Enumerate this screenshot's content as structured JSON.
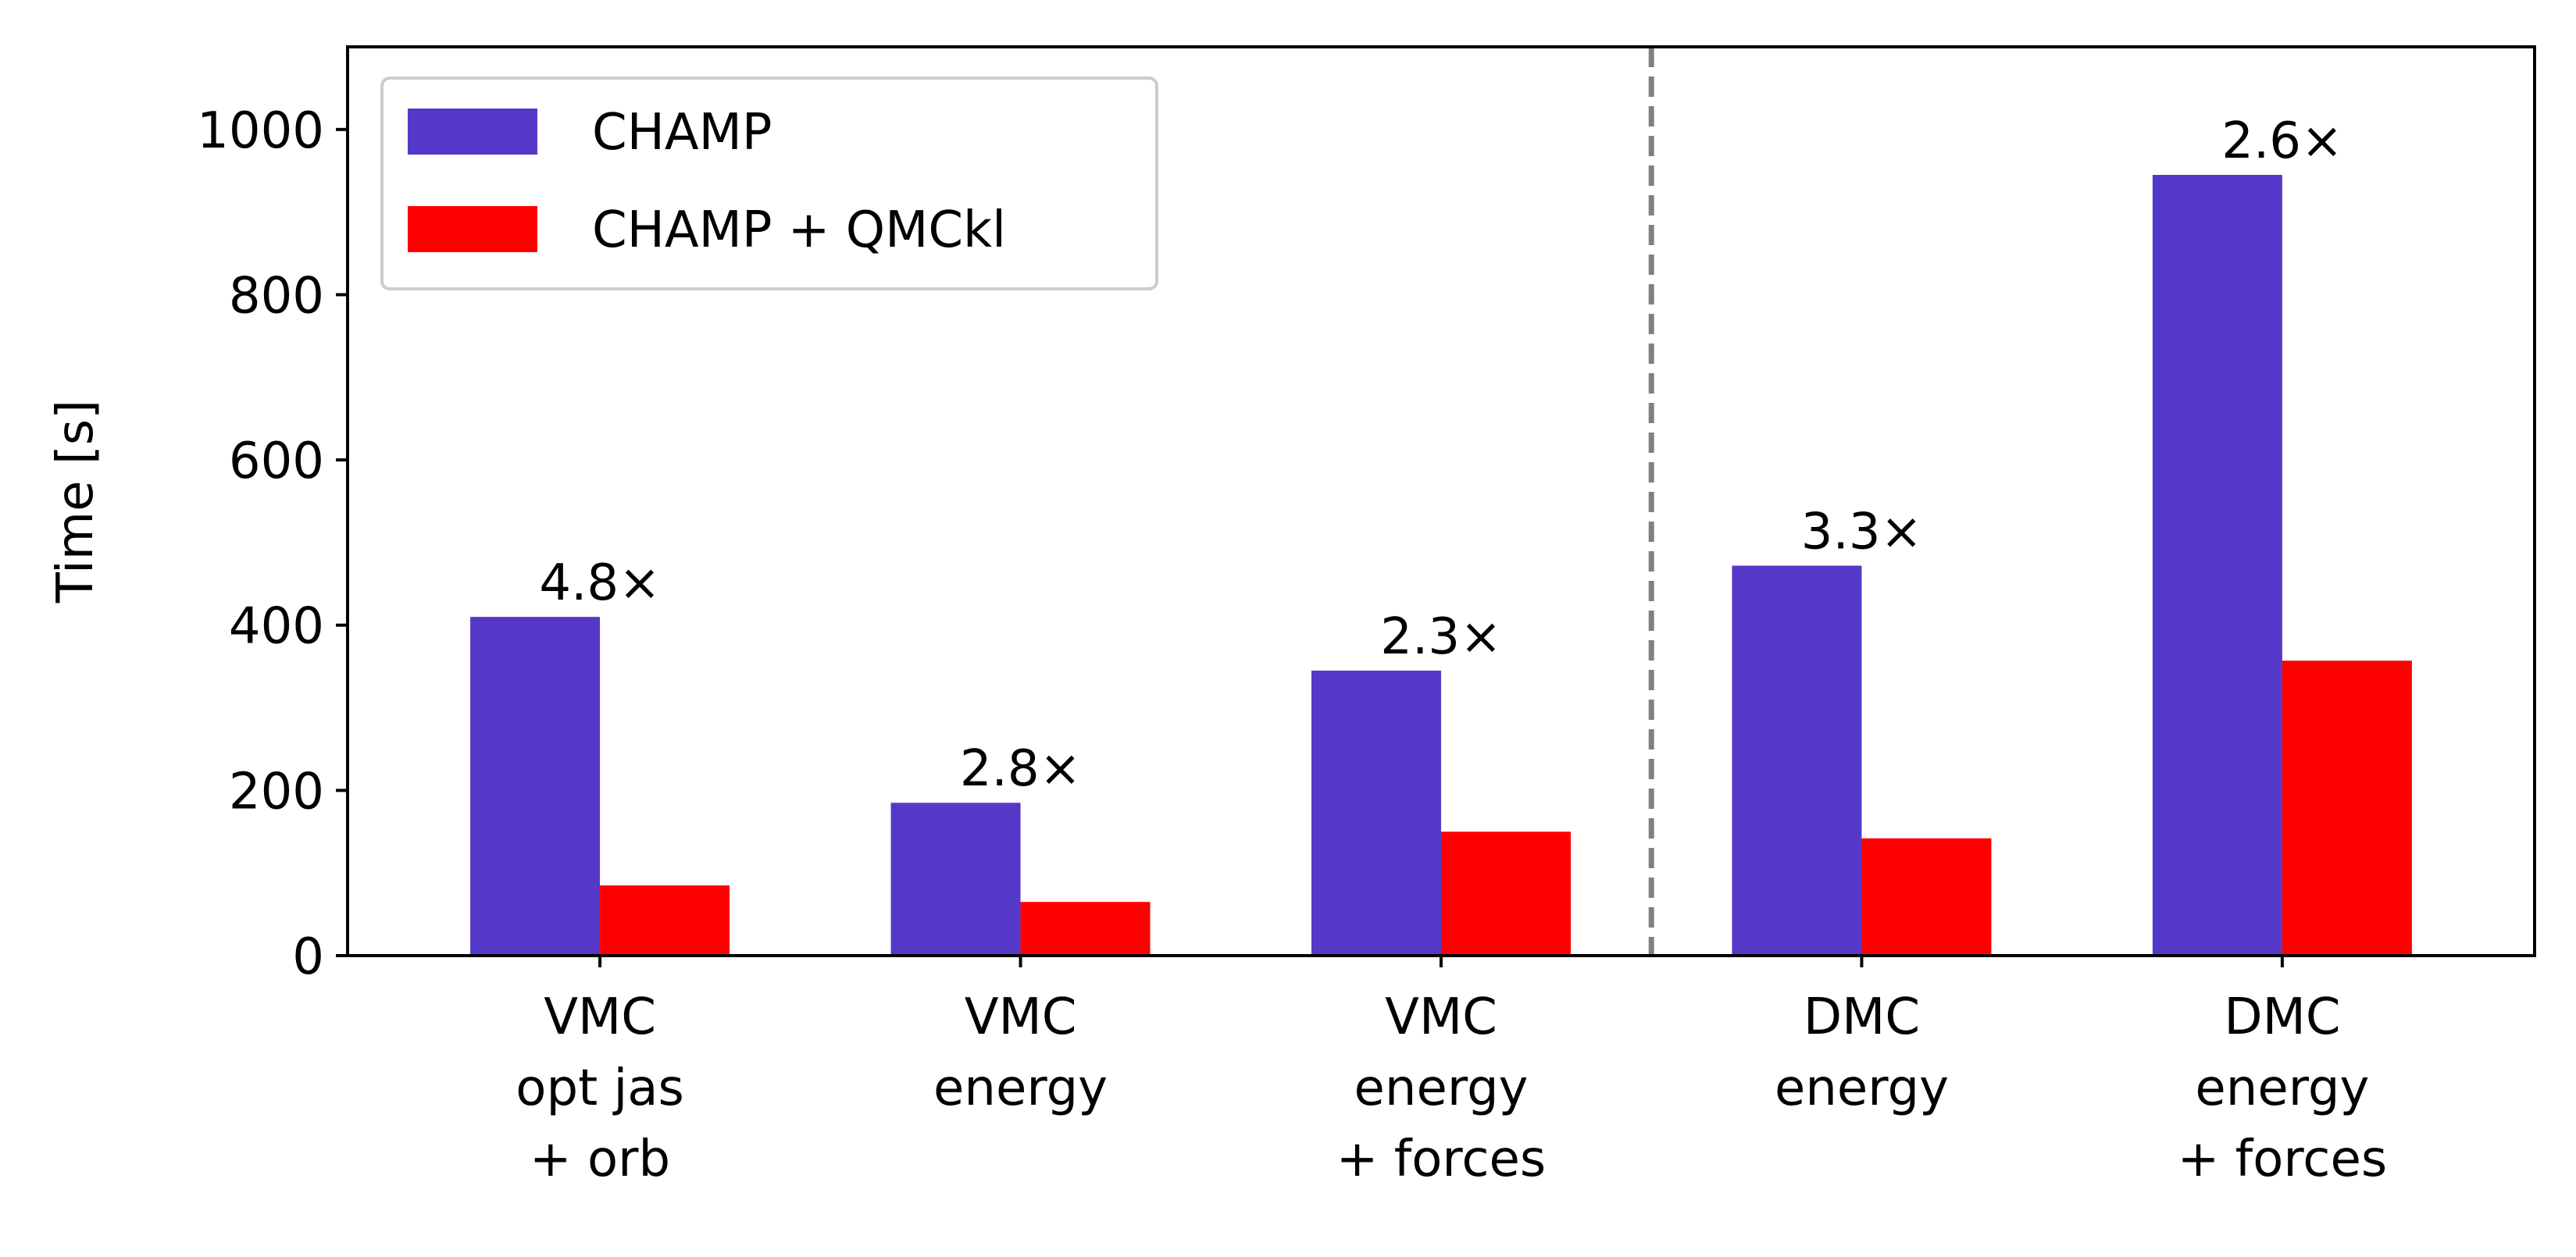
{
  "chart_data": {
    "type": "bar",
    "title": "",
    "xlabel": "",
    "ylabel": "Time [s]",
    "ylim": [
      0,
      1100
    ],
    "yticks": [
      0,
      200,
      400,
      600,
      800,
      1000
    ],
    "categories": [
      [
        "VMC",
        "opt jas",
        "+ orb"
      ],
      [
        "VMC",
        "energy"
      ],
      [
        "VMC",
        "energy",
        "+ forces"
      ],
      [
        "DMC",
        "energy"
      ],
      [
        "DMC",
        "energy",
        "+ forces"
      ]
    ],
    "series": [
      {
        "name": "CHAMP",
        "color": "#5638c9",
        "values": [
          410,
          185,
          345,
          472,
          945
        ]
      },
      {
        "name": "CHAMP + QMCkl",
        "color": "#ff0000",
        "values": [
          85,
          65,
          150,
          142,
          357
        ]
      }
    ],
    "speedups": [
      "4.8×",
      "2.8×",
      "2.3×",
      "3.3×",
      "2.6×"
    ],
    "separator": {
      "after_category_index": 2,
      "style": "dashed",
      "color": "#808080"
    },
    "legend": {
      "position": "top-left"
    },
    "grid": false
  }
}
